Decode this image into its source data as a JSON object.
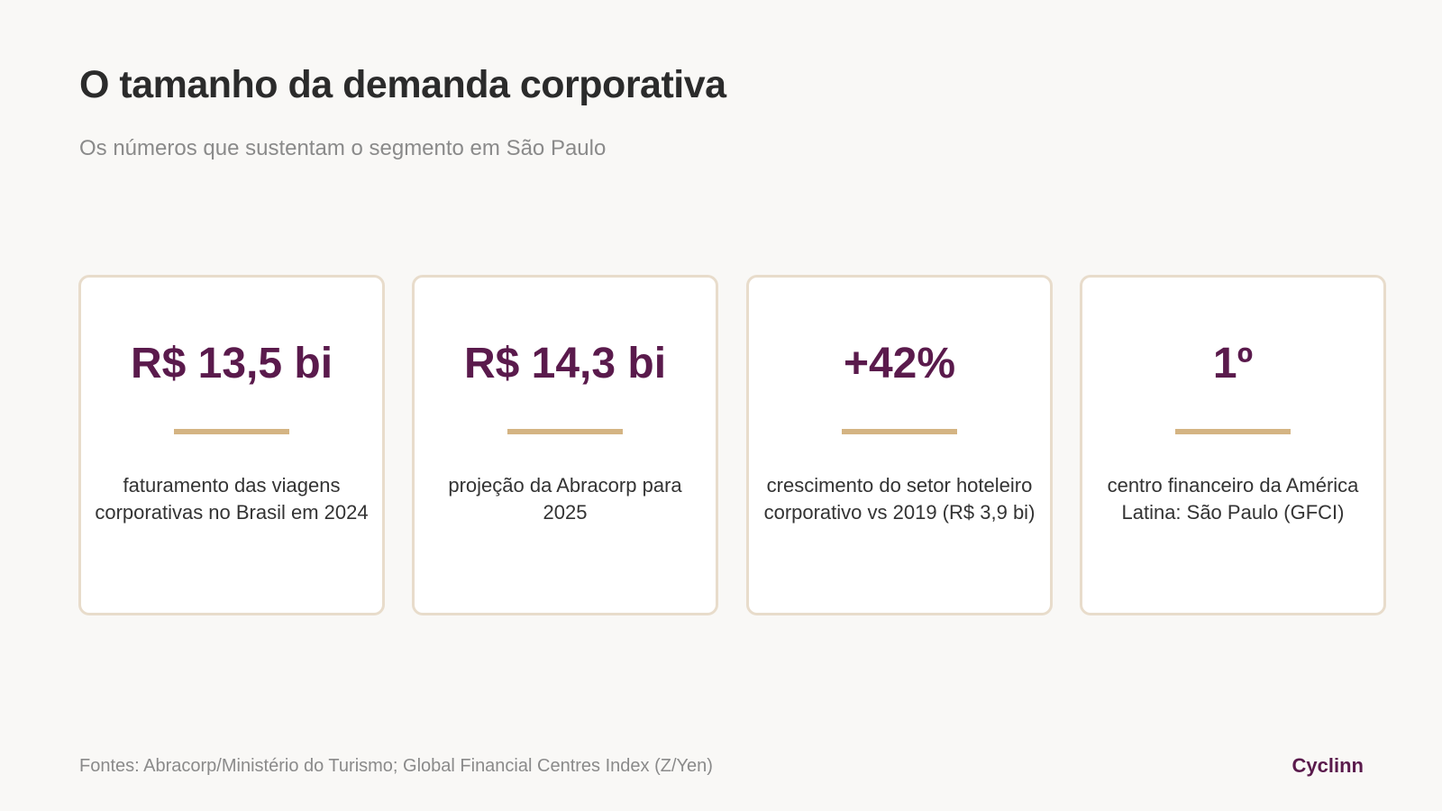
{
  "title": "O tamanho da demanda corporativa",
  "subtitle": "Os números que sustentam o segmento em São Paulo",
  "cards": [
    {
      "value": "R$ 13,5 bi",
      "description": "faturamento das viagens corporativas no Brasil em 2024"
    },
    {
      "value": "R$ 14,3 bi",
      "description": "projeção da Abracorp para 2025"
    },
    {
      "value": "+42%",
      "description": "crescimento do setor hoteleiro corporativo vs 2019 (R$ 3,9 bi)"
    },
    {
      "value": "1º",
      "description": "centro financeiro da América Latina: São Paulo (GFCI)"
    }
  ],
  "footer": {
    "sources": "Fontes: Abracorp/Ministério do Turismo; Global Financial Centres Index (Z/Yen)",
    "brand": "Cyclinn"
  },
  "colors": {
    "background": "#f9f8f6",
    "accent": "#5a1a4c",
    "rule": "#d4b483",
    "card_border": "#e8dccb"
  }
}
